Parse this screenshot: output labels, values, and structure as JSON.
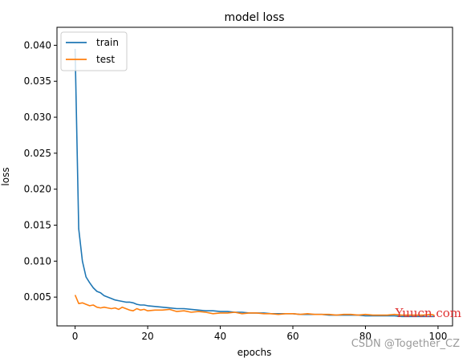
{
  "chart_data": {
    "type": "line",
    "title": "model loss",
    "xlabel": "epochs",
    "ylabel": "loss",
    "xlim": [
      -5,
      104
    ],
    "ylim": [
      0.001,
      0.0425
    ],
    "xticks": [
      0,
      20,
      40,
      60,
      80,
      100
    ],
    "yticks": [
      0.005,
      0.01,
      0.015,
      0.02,
      0.025,
      0.03,
      0.035,
      0.04
    ],
    "ytick_labels": [
      "0.005",
      "0.010",
      "0.015",
      "0.020",
      "0.025",
      "0.030",
      "0.035",
      "0.040"
    ],
    "grid": false,
    "legend": "upper-left",
    "series": [
      {
        "name": "train",
        "color": "#1f77b4",
        "x": [
          0,
          1,
          2,
          3,
          4,
          5,
          6,
          7,
          8,
          9,
          10,
          11,
          12,
          13,
          14,
          15,
          16,
          17,
          18,
          19,
          20,
          22,
          24,
          26,
          28,
          30,
          32,
          34,
          36,
          38,
          40,
          42,
          44,
          46,
          48,
          50,
          52,
          54,
          56,
          58,
          60,
          62,
          64,
          66,
          68,
          70,
          72,
          74,
          76,
          78,
          80,
          82,
          84,
          86,
          88,
          90,
          92,
          94,
          96,
          98,
          99
        ],
        "y": [
          0.0395,
          0.0145,
          0.01,
          0.0078,
          0.007,
          0.0063,
          0.0058,
          0.0056,
          0.0052,
          0.005,
          0.0048,
          0.0046,
          0.0045,
          0.0044,
          0.0043,
          0.0043,
          0.0042,
          0.004,
          0.0039,
          0.0039,
          0.0038,
          0.0037,
          0.0036,
          0.0035,
          0.0034,
          0.0034,
          0.0033,
          0.0032,
          0.0031,
          0.0031,
          0.003,
          0.003,
          0.0029,
          0.0029,
          0.0028,
          0.0028,
          0.0028,
          0.0027,
          0.0027,
          0.0027,
          0.0027,
          0.0026,
          0.0026,
          0.0026,
          0.0026,
          0.0025,
          0.0025,
          0.0025,
          0.0025,
          0.0025,
          0.0024,
          0.0024,
          0.0024,
          0.0024,
          0.0024,
          0.0023,
          0.0023,
          0.0023,
          0.0023,
          0.0023,
          0.0023
        ]
      },
      {
        "name": "test",
        "color": "#ff7f0e",
        "x": [
          0,
          1,
          2,
          3,
          4,
          5,
          6,
          7,
          8,
          9,
          10,
          11,
          12,
          13,
          14,
          15,
          16,
          17,
          18,
          19,
          20,
          22,
          24,
          26,
          28,
          30,
          32,
          34,
          36,
          38,
          40,
          42,
          44,
          46,
          48,
          50,
          52,
          54,
          56,
          58,
          60,
          62,
          64,
          66,
          68,
          70,
          72,
          74,
          76,
          78,
          80,
          82,
          84,
          86,
          88,
          90,
          92,
          94,
          96,
          98,
          99
        ],
        "y": [
          0.0053,
          0.0041,
          0.0042,
          0.004,
          0.0038,
          0.0039,
          0.0036,
          0.0035,
          0.0036,
          0.0035,
          0.0034,
          0.0035,
          0.0033,
          0.0036,
          0.0034,
          0.0032,
          0.0031,
          0.0034,
          0.0032,
          0.0033,
          0.0031,
          0.0032,
          0.0032,
          0.0033,
          0.003,
          0.0031,
          0.0029,
          0.003,
          0.0029,
          0.0027,
          0.0028,
          0.0028,
          0.0029,
          0.0027,
          0.0028,
          0.0028,
          0.0027,
          0.0027,
          0.0026,
          0.0027,
          0.0027,
          0.0026,
          0.0027,
          0.0026,
          0.0026,
          0.0026,
          0.0025,
          0.0026,
          0.0026,
          0.0025,
          0.0026,
          0.0025,
          0.0025,
          0.0025,
          0.0026,
          0.0025,
          0.0025,
          0.0025,
          0.0025,
          0.0026,
          0.0025
        ]
      }
    ]
  },
  "watermark": "CSDN @Together_CZ",
  "watermark2": "Yuucn.com"
}
